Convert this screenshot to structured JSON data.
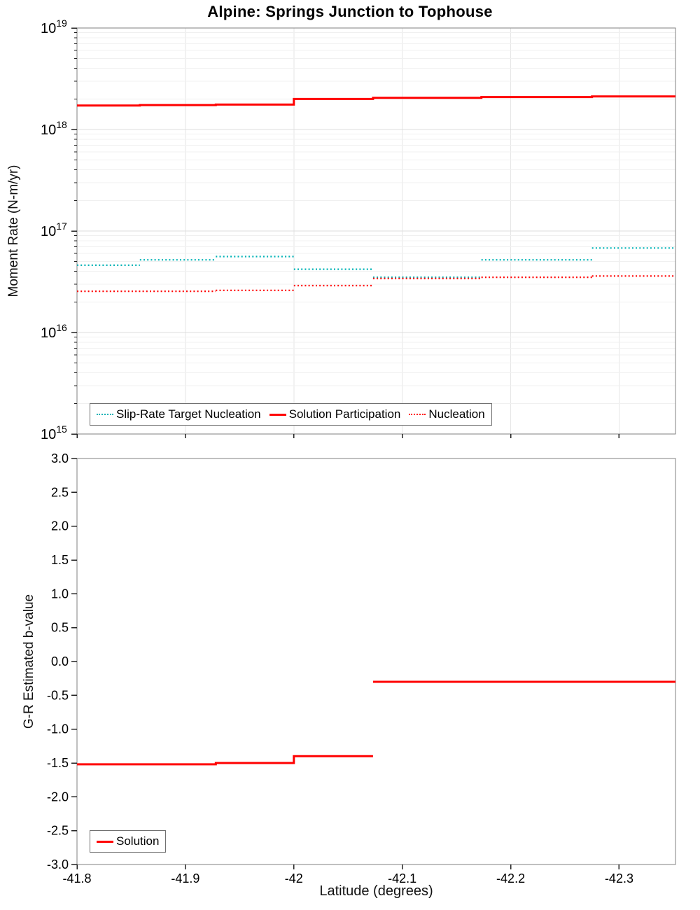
{
  "chart_data": [
    {
      "type": "line",
      "title": "Alpine: Springs Junction to Tophouse",
      "ylabel": "Moment Rate (N-m/yr)",
      "yscale": "log",
      "ylim": [
        1000000000000000.0,
        1e+19
      ],
      "ytick_exponents": [
        19,
        18,
        17,
        16,
        15
      ],
      "xlim": [
        -41.8,
        -42.352
      ],
      "xticks": [
        -41.8,
        -41.9,
        -42.0,
        -42.1,
        -42.2,
        -42.3
      ],
      "xtick_labels": [
        "-41.8",
        "-41.9",
        "-42",
        "-42.1",
        "-42.2",
        "-42.3"
      ],
      "grid": true,
      "legend_position": "bottom-left",
      "series": [
        {
          "name": "Slip-Rate Target Nucleation",
          "color": "#00b3b6",
          "line_style": "dotted",
          "segments": [
            [
              [
                -41.8,
                4.6e+16
              ],
              [
                -41.858,
                4.6e+16
              ]
            ],
            [
              [
                -41.858,
                5.2e+16
              ],
              [
                -41.928,
                5.2e+16
              ]
            ],
            [
              [
                -41.928,
                5.6e+16
              ],
              [
                -42.0,
                5.6e+16
              ]
            ],
            [
              [
                -42.0,
                4.2e+16
              ],
              [
                -42.073,
                4.2e+16
              ]
            ],
            [
              [
                -42.073,
                3.5e+16
              ],
              [
                -42.173,
                3.5e+16
              ]
            ],
            [
              [
                -42.173,
                5.2e+16
              ],
              [
                -42.275,
                5.2e+16
              ]
            ],
            [
              [
                -42.275,
                6.8e+16
              ],
              [
                -42.352,
                6.8e+16
              ]
            ]
          ]
        },
        {
          "name": "Solution Participation",
          "color": "#ff0000",
          "line_style": "solid",
          "segments": [
            [
              [
                -41.8,
                1.72e+18
              ],
              [
                -41.858,
                1.72e+18
              ],
              [
                -41.858,
                1.74e+18
              ],
              [
                -41.928,
                1.74e+18
              ],
              [
                -41.928,
                1.76e+18
              ],
              [
                -42.0,
                1.76e+18
              ],
              [
                -42.0,
                2e+18
              ],
              [
                -42.073,
                2e+18
              ],
              [
                -42.073,
                2.05e+18
              ],
              [
                -42.173,
                2.05e+18
              ],
              [
                -42.173,
                2.09e+18
              ],
              [
                -42.275,
                2.09e+18
              ],
              [
                -42.275,
                2.12e+18
              ],
              [
                -42.352,
                2.12e+18
              ]
            ]
          ]
        },
        {
          "name": "Nucleation",
          "color": "#ff0000",
          "line_style": "dotted",
          "segments": [
            [
              [
                -41.8,
                2.55e+16
              ],
              [
                -41.928,
                2.55e+16
              ]
            ],
            [
              [
                -41.928,
                2.6e+16
              ],
              [
                -42.0,
                2.6e+16
              ]
            ],
            [
              [
                -42.0,
                2.9e+16
              ],
              [
                -42.073,
                2.9e+16
              ]
            ],
            [
              [
                -42.073,
                3.4e+16
              ],
              [
                -42.173,
                3.4e+16
              ]
            ],
            [
              [
                -42.173,
                3.5e+16
              ],
              [
                -42.275,
                3.5e+16
              ]
            ],
            [
              [
                -42.275,
                3.6e+16
              ],
              [
                -42.352,
                3.6e+16
              ]
            ]
          ]
        }
      ]
    },
    {
      "type": "line",
      "ylabel": "G-R Estimated b-value",
      "xlabel": "Latitude (degrees)",
      "ylim": [
        -3.0,
        3.0
      ],
      "yticks": [
        3.0,
        2.5,
        2.0,
        1.5,
        1.0,
        0.5,
        0.0,
        -0.5,
        -1.0,
        -1.5,
        -2.0,
        -2.5,
        -3.0
      ],
      "ytick_labels": [
        "3.0",
        "2.5",
        "2.0",
        "1.5",
        "1.0",
        "0.5",
        "0.0",
        "-0.5",
        "-1.0",
        "-1.5",
        "-2.0",
        "-2.5",
        "-3.0"
      ],
      "xlim": [
        -41.8,
        -42.352
      ],
      "xticks": [
        -41.8,
        -41.9,
        -42.0,
        -42.1,
        -42.2,
        -42.3
      ],
      "xtick_labels": [
        "-41.8",
        "-41.9",
        "-42",
        "-42.1",
        "-42.2",
        "-42.3"
      ],
      "grid": false,
      "legend_position": "bottom-left",
      "series": [
        {
          "name": "Solution",
          "color": "#ff0000",
          "line_style": "solid",
          "segments": [
            [
              [
                -41.8,
                -1.52
              ],
              [
                -41.928,
                -1.52
              ],
              [
                -41.928,
                -1.5
              ],
              [
                -42.0,
                -1.5
              ],
              [
                -42.0,
                -1.4
              ],
              [
                -42.073,
                -1.4
              ]
            ],
            [
              [
                -42.073,
                -0.3
              ],
              [
                -42.352,
                -0.3
              ]
            ]
          ]
        }
      ]
    }
  ],
  "colors": {
    "solution_red": "#ff0000",
    "slip_rate_teal": "#00b3b6",
    "gridline": "#ececec",
    "plot_border": "#808080"
  }
}
